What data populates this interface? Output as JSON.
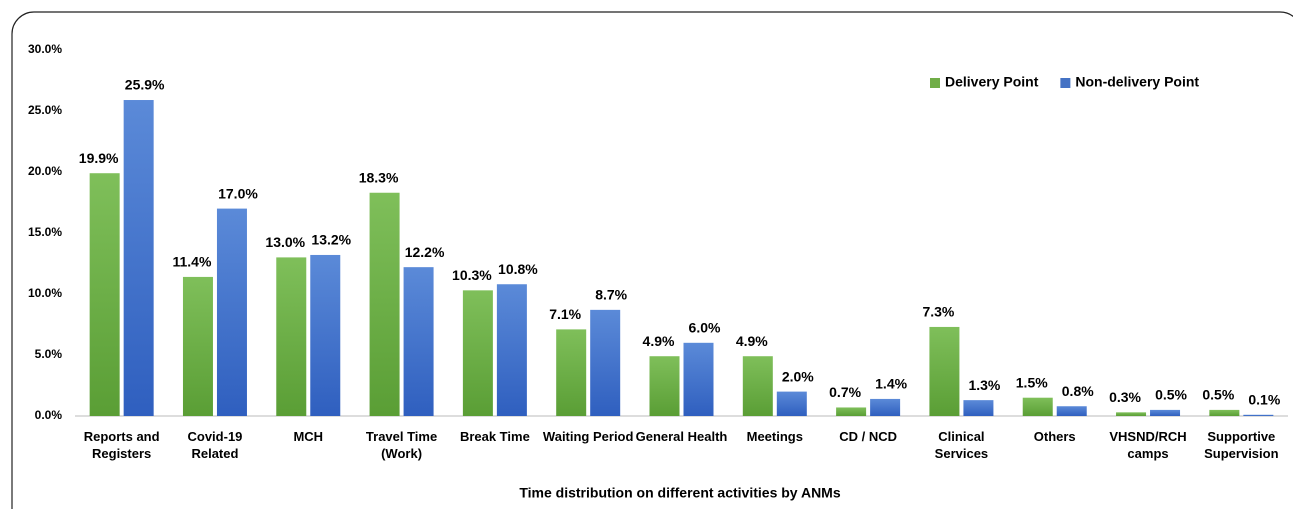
{
  "chart_data": {
    "type": "bar",
    "x_label": "Time distribution on different activities by ANMs",
    "categories": [
      "Reports and Registers",
      "Covid-19 Related",
      "MCH",
      "Travel Time (Work)",
      "Break Time",
      "Waiting Period",
      "General Health",
      "Meetings",
      "CD / NCD",
      "Clinical Services",
      "Others",
      "VHSND/RCH camps",
      "Supportive Supervision"
    ],
    "series": [
      {
        "name": "Delivery Point",
        "color": "#70ad47",
        "values": [
          19.9,
          11.4,
          13.0,
          18.3,
          10.3,
          7.1,
          4.9,
          4.9,
          0.7,
          7.3,
          1.5,
          0.3,
          0.5
        ],
        "value_labels": [
          "19.9%",
          "11.4%",
          "13.0%",
          "18.3%",
          "10.3%",
          "7.1%",
          "4.9%",
          "4.9%",
          "0.7%",
          "7.3%",
          "1.5%",
          "0.3%",
          "0.5%"
        ]
      },
      {
        "name": "Non-delivery Point",
        "color": "#4472c4",
        "values": [
          25.9,
          17.0,
          13.2,
          12.2,
          10.8,
          8.7,
          6.0,
          2.0,
          1.4,
          1.3,
          0.8,
          0.5,
          0.1
        ],
        "value_labels": [
          "25.9%",
          "17.0%",
          "13.2%",
          "12.2%",
          "10.8%",
          "8.7%",
          "6.0%",
          "2.0%",
          "1.4%",
          "1.3%",
          "0.8%",
          "0.5%",
          "0.1%"
        ]
      }
    ],
    "ylim": [
      0,
      30
    ],
    "yticks": [
      {
        "value": 0,
        "label": "0.0%"
      },
      {
        "value": 5,
        "label": "5.0%"
      },
      {
        "value": 10,
        "label": "10.0%"
      },
      {
        "value": 15,
        "label": "15.0%"
      },
      {
        "value": 20,
        "label": "20.0%"
      },
      {
        "value": 25,
        "label": "25.0%"
      },
      {
        "value": 30,
        "label": "30.0%"
      }
    ],
    "grid": false,
    "legend": "top-right"
  }
}
